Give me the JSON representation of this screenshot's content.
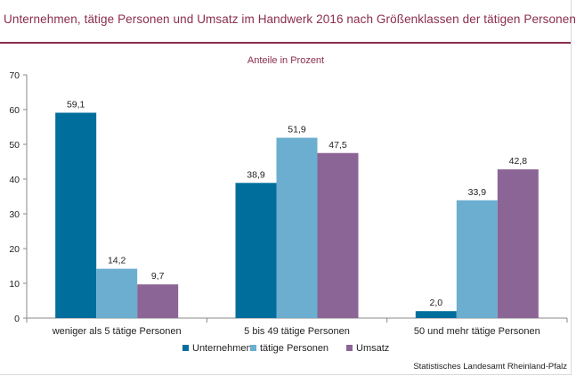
{
  "title": "Unternehmen, tätige Personen und Umsatz im Handwerk 2016 nach Größenklassen der tätigen Personen",
  "source": "Statistisches Landesamt Rheinland-Pfalz",
  "chart_data": {
    "type": "bar",
    "subtitle": "Anteile in Prozent",
    "categories": [
      "weniger als 5 tätige Personen",
      "5 bis 49 tätige Personen",
      "50 und mehr tätige Personen"
    ],
    "series": [
      {
        "name": "Unternehmen",
        "values": [
          59.1,
          38.9,
          2.0
        ],
        "labels": [
          "59,1",
          "38,9",
          "2,0"
        ],
        "color": "#006e9c"
      },
      {
        "name": "tätige Personen",
        "values": [
          14.2,
          51.9,
          33.9
        ],
        "labels": [
          "14,2",
          "51,9",
          "33,9"
        ],
        "color": "#6baed0"
      },
      {
        "name": "Umsatz",
        "values": [
          9.7,
          47.5,
          42.8
        ],
        "labels": [
          "9,7",
          "47,5",
          "42,8"
        ],
        "color": "#8b6595"
      }
    ],
    "ylim": [
      0,
      70
    ],
    "yticks": [
      0,
      10,
      20,
      30,
      40,
      50,
      60,
      70
    ],
    "legend": "bottom",
    "grid": false
  }
}
